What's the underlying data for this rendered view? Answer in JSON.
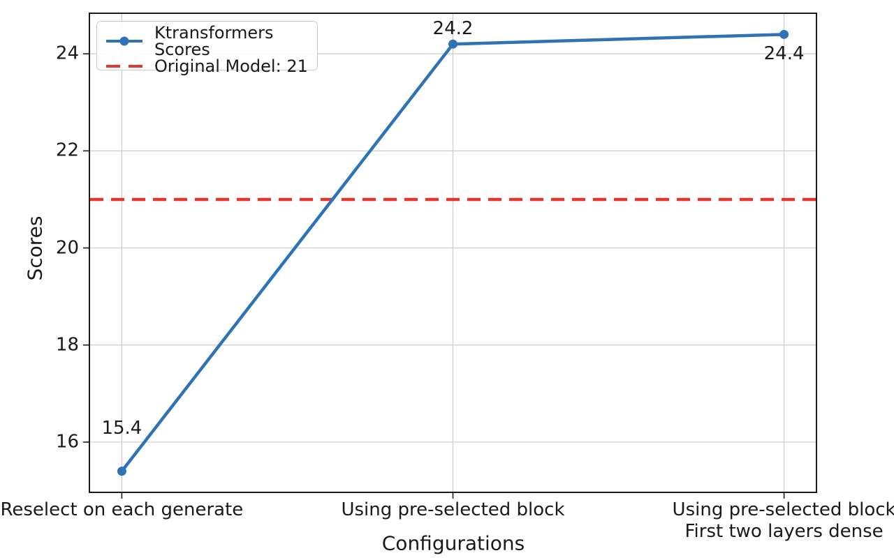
{
  "chart_data": {
    "type": "line",
    "title": "",
    "xlabel": "Configurations",
    "ylabel": "Scores",
    "categories": [
      [
        "Reselect on each generate"
      ],
      [
        "Using pre-selected block"
      ],
      [
        "Using pre-selected block",
        "First two layers dense"
      ]
    ],
    "series": [
      {
        "name": "Ktransformers Scores",
        "values": [
          15.4,
          24.2,
          24.4
        ]
      }
    ],
    "point_labels": [
      "15.4",
      "24.2",
      "24.4"
    ],
    "point_label_positions": [
      "above",
      "above",
      "below"
    ],
    "reference_line": {
      "label": "Original Model: 21",
      "value": 21,
      "style": "dashed"
    },
    "yticks": [
      16,
      18,
      20,
      22,
      24
    ],
    "ylim": [
      14.95,
      24.85
    ],
    "grid": true,
    "legend_position": "top-left",
    "colors": {
      "series": "#2d73b5",
      "reference": "#e5372c",
      "grid": "#cccccc",
      "spine": "#1a1a1a",
      "text": "#1a1a1a"
    }
  }
}
